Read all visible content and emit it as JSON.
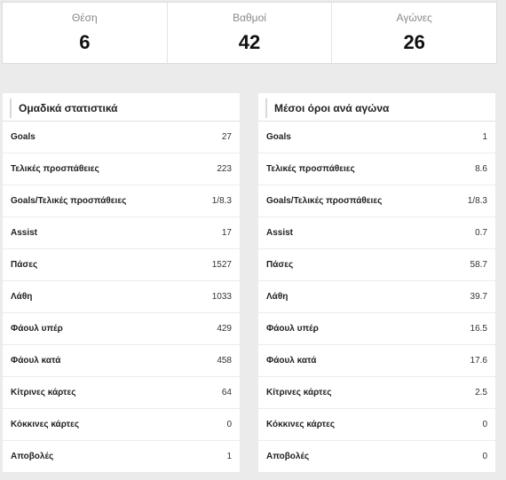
{
  "summary": [
    {
      "label": "Θέση",
      "value": "6"
    },
    {
      "label": "Βαθμοί",
      "value": "42"
    },
    {
      "label": "Αγώνες",
      "value": "26"
    }
  ],
  "team_stats": {
    "title": "Ομαδικά στατιστικά",
    "rows": [
      {
        "label": "Goals",
        "value": "27"
      },
      {
        "label": "Τελικές προσπάθειες",
        "value": "223"
      },
      {
        "label": "Goals/Τελικές προσπάθειες",
        "value": "1/8.3"
      },
      {
        "label": "Assist",
        "value": "17"
      },
      {
        "label": "Πάσες",
        "value": "1527"
      },
      {
        "label": "Λάθη",
        "value": "1033"
      },
      {
        "label": "Φάουλ υπέρ",
        "value": "429"
      },
      {
        "label": "Φάουλ κατά",
        "value": "458"
      },
      {
        "label": "Κίτρινες κάρτες",
        "value": "64"
      },
      {
        "label": "Κόκκινες κάρτες",
        "value": "0"
      },
      {
        "label": "Αποβολές",
        "value": "1"
      }
    ]
  },
  "averages": {
    "title": "Μέσοι όροι ανά αγώνα",
    "rows": [
      {
        "label": "Goals",
        "value": "1"
      },
      {
        "label": "Τελικές προσπάθειες",
        "value": "8.6"
      },
      {
        "label": "Goals/Τελικές προσπάθειες",
        "value": "1/8.3"
      },
      {
        "label": "Assist",
        "value": "0.7"
      },
      {
        "label": "Πάσες",
        "value": "58.7"
      },
      {
        "label": "Λάθη",
        "value": "39.7"
      },
      {
        "label": "Φάουλ υπέρ",
        "value": "16.5"
      },
      {
        "label": "Φάουλ κατά",
        "value": "17.6"
      },
      {
        "label": "Κίτρινες κάρτες",
        "value": "2.5"
      },
      {
        "label": "Κόκκινες κάρτες",
        "value": "0"
      },
      {
        "label": "Αποβολές",
        "value": "0"
      }
    ]
  }
}
